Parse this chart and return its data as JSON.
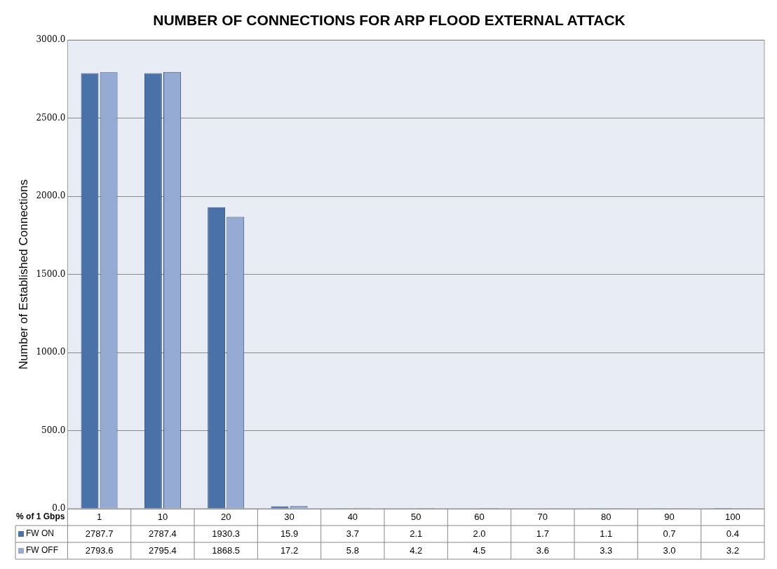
{
  "chart_data": {
    "type": "bar",
    "title": "NUMBER OF CONNECTIONS FOR ARP FLOOD EXTERNAL ATTACK",
    "xlabel": "% of 1 Gbps",
    "ylabel": "Number of Established Connections",
    "categories": [
      "1",
      "10",
      "20",
      "30",
      "40",
      "50",
      "60",
      "70",
      "80",
      "90",
      "100"
    ],
    "series": [
      {
        "name": "FW ON",
        "color": "#4a72a8",
        "values": [
          2787.7,
          2787.4,
          1930.3,
          15.9,
          3.7,
          2.1,
          2.0,
          1.7,
          1.1,
          0.7,
          0.4
        ],
        "value_labels": [
          "2787.7",
          "2787.4",
          "1930.3",
          "15.9",
          "3.7",
          "2.1",
          "2.0",
          "1.7",
          "1.1",
          "0.7",
          "0.4"
        ]
      },
      {
        "name": "FW OFF",
        "color": "#95abd4",
        "values": [
          2793.6,
          2795.4,
          1868.5,
          17.2,
          5.8,
          4.2,
          4.5,
          3.6,
          3.3,
          3.0,
          3.2
        ],
        "value_labels": [
          "2793.6",
          "2795.4",
          "1868.5",
          "17.2",
          "5.8",
          "4.2",
          "4.5",
          "3.6",
          "3.3",
          "3.0",
          "3.2"
        ]
      }
    ],
    "ylim": [
      0,
      3000
    ],
    "yticks": [
      {
        "value": 0,
        "label": "0.0"
      },
      {
        "value": 500,
        "label": "500.0"
      },
      {
        "value": 1000,
        "label": "1000.0"
      },
      {
        "value": 1500,
        "label": "1500.0"
      },
      {
        "value": 2000,
        "label": "2000.0"
      },
      {
        "value": 2500,
        "label": "2500.0"
      },
      {
        "value": 3000,
        "label": "3000.0"
      }
    ],
    "grid": "y",
    "legend": "bottom"
  }
}
